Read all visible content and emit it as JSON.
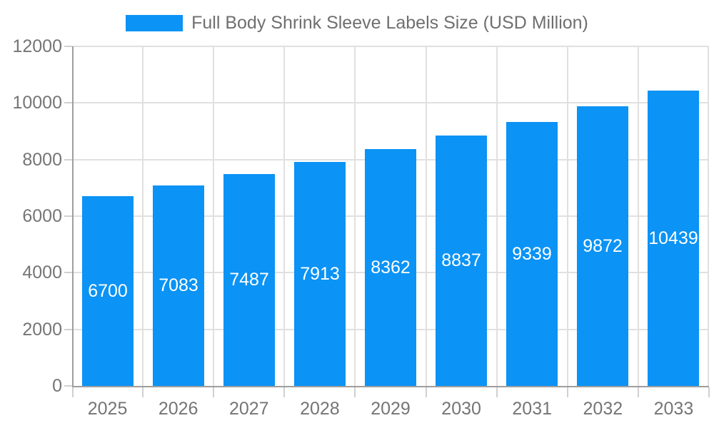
{
  "legend": {
    "label": "Full Body Shrink Sleeve Labels Size (USD Million)"
  },
  "colors": {
    "bar": "#0b93f5",
    "grid": "#e0e0e0",
    "tick": "#d0d0d0",
    "axis": "#9e9e9e",
    "axis_text": "#757575",
    "title_text": "#6f6f6f",
    "bar_label": "#ffffff",
    "background": "#ffffff"
  },
  "chart_data": {
    "type": "bar",
    "title": "Full Body Shrink Sleeve Labels Size (USD Million)",
    "series_name": "Full Body Shrink Sleeve Labels Size (USD Million)",
    "categories": [
      "2025",
      "2026",
      "2027",
      "2028",
      "2029",
      "2030",
      "2031",
      "2032",
      "2033"
    ],
    "values": [
      6700,
      7083,
      7487,
      7913,
      8362,
      8837,
      9339,
      9872,
      10439
    ],
    "xlabel": "",
    "ylabel": "",
    "ylim": [
      0,
      12000
    ],
    "y_ticks": [
      0,
      2000,
      4000,
      6000,
      8000,
      10000,
      12000
    ],
    "grid": "both",
    "legend_position": "top-center",
    "value_labels": "inside-center"
  }
}
